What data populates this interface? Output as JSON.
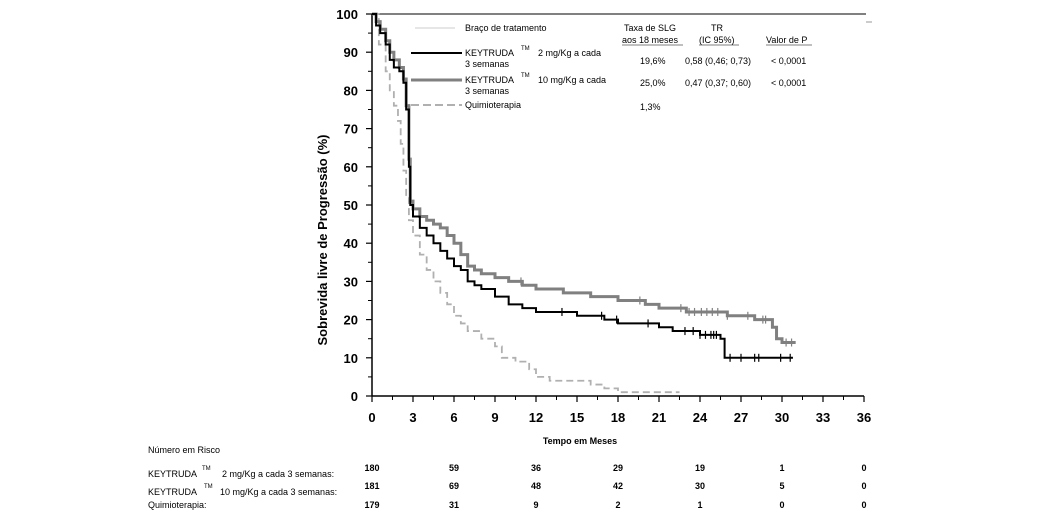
{
  "chart_data": {
    "type": "line",
    "xlabel": "Tempo em Meses",
    "ylabel": "Sobrevida livre de Progressão (%)",
    "xlim": [
      0,
      36
    ],
    "ylim": [
      0,
      100
    ],
    "x_ticks": [
      "0",
      "3",
      "6",
      "9",
      "12",
      "15",
      "18",
      "21",
      "24",
      "27",
      "30",
      "33",
      "36"
    ],
    "y_ticks": [
      "0",
      "10",
      "20",
      "30",
      "40",
      "50",
      "60",
      "70",
      "80",
      "90",
      "100"
    ],
    "legend": {
      "header_arm": "Braço de tratamento",
      "header_rate_1": "Taxa de SLG",
      "header_rate_2": "aos 18 meses",
      "header_hr_1": "TR",
      "header_hr_2": "(IC 95%)",
      "header_p": "Valor de P",
      "entries": [
        {
          "name": "KEYTRUDA",
          "tm": "TM",
          "dose": "2 mg/Kg a cada",
          "line2": "3 semanas",
          "rate": "19,6%",
          "hr": "0,58 (0,46; 0,73)",
          "p": "< 0,0001"
        },
        {
          "name": "KEYTRUDA",
          "tm": "TM",
          "dose": "10 mg/Kg a cada",
          "line2": "3 semanas",
          "rate": "25,0%",
          "hr": "0,47 (0,37; 0,60)",
          "p": "< 0,0001"
        },
        {
          "name": "Quimioterapia",
          "tm": "",
          "dose": "",
          "line2": "",
          "rate": "1,3%",
          "hr": "",
          "p": ""
        }
      ]
    },
    "series": [
      {
        "name": "KEYTRUDA 2 mg/Kg a cada 3 semanas",
        "color": "#000000",
        "points": [
          [
            0,
            100
          ],
          [
            0.3,
            97
          ],
          [
            0.6,
            95
          ],
          [
            1.0,
            92
          ],
          [
            1.3,
            88
          ],
          [
            1.6,
            86
          ],
          [
            2.0,
            85
          ],
          [
            2.3,
            82
          ],
          [
            2.5,
            75
          ],
          [
            2.7,
            60
          ],
          [
            2.8,
            50
          ],
          [
            3.0,
            47
          ],
          [
            3.5,
            44
          ],
          [
            4.0,
            42
          ],
          [
            4.5,
            40
          ],
          [
            5.0,
            38
          ],
          [
            5.5,
            36
          ],
          [
            6.0,
            34
          ],
          [
            6.5,
            33
          ],
          [
            7.0,
            30
          ],
          [
            7.5,
            29
          ],
          [
            8.0,
            28
          ],
          [
            9.0,
            26
          ],
          [
            10.0,
            24
          ],
          [
            11.0,
            23
          ],
          [
            12.0,
            22
          ],
          [
            14.0,
            22
          ],
          [
            15.0,
            21
          ],
          [
            16.0,
            21
          ],
          [
            17.0,
            20
          ],
          [
            18.0,
            19
          ],
          [
            20.0,
            19
          ],
          [
            21.0,
            18
          ],
          [
            22.0,
            17
          ],
          [
            23.0,
            17
          ],
          [
            24.0,
            16
          ],
          [
            25.0,
            16
          ],
          [
            25.5,
            15
          ],
          [
            25.8,
            10
          ],
          [
            27.0,
            10
          ],
          [
            30.0,
            10
          ],
          [
            30.8,
            10
          ]
        ],
        "censor_x": [
          13.9,
          16.8,
          17.9,
          20.2,
          22.9,
          23.5,
          24.0,
          24.4,
          24.8,
          25.0,
          25.2,
          26.2,
          27.0,
          28.0,
          28.3,
          29.9,
          30.6
        ]
      },
      {
        "name": "KEYTRUDA 10 mg/Kg a cada 3 semanas",
        "color": "#808080",
        "points": [
          [
            0,
            100
          ],
          [
            0.3,
            98
          ],
          [
            0.6,
            96
          ],
          [
            1.0,
            93
          ],
          [
            1.3,
            90
          ],
          [
            1.6,
            88
          ],
          [
            2.0,
            86
          ],
          [
            2.3,
            83
          ],
          [
            2.5,
            76
          ],
          [
            2.7,
            62
          ],
          [
            2.8,
            51
          ],
          [
            3.0,
            49
          ],
          [
            3.5,
            47
          ],
          [
            4.0,
            46
          ],
          [
            4.5,
            45
          ],
          [
            5.0,
            44
          ],
          [
            5.5,
            42
          ],
          [
            6.0,
            40
          ],
          [
            6.5,
            37
          ],
          [
            7.0,
            34
          ],
          [
            7.5,
            33
          ],
          [
            8.0,
            32
          ],
          [
            9.0,
            31
          ],
          [
            10.0,
            30
          ],
          [
            11.0,
            29
          ],
          [
            12.0,
            28
          ],
          [
            14.0,
            27
          ],
          [
            15.0,
            27
          ],
          [
            16.0,
            26
          ],
          [
            17.0,
            26
          ],
          [
            18.0,
            25
          ],
          [
            20.0,
            24
          ],
          [
            21.0,
            23
          ],
          [
            22.0,
            23
          ],
          [
            23.0,
            22
          ],
          [
            24.0,
            22
          ],
          [
            25.0,
            22
          ],
          [
            26.0,
            21
          ],
          [
            27.0,
            21
          ],
          [
            28.0,
            20
          ],
          [
            29.0,
            20
          ],
          [
            29.3,
            18
          ],
          [
            29.6,
            15
          ],
          [
            30.0,
            14
          ],
          [
            31.0,
            14
          ]
        ],
        "censor_x": [
          10.9,
          19.6,
          22.6,
          23.2,
          23.6,
          24.1,
          24.5,
          24.9,
          25.3,
          26.0,
          27.5,
          28.6,
          28.8,
          30.3,
          30.7
        ]
      },
      {
        "name": "Quimioterapia",
        "color": "#b0b0b0",
        "dashed": true,
        "points": [
          [
            0,
            100
          ],
          [
            0.5,
            92
          ],
          [
            1.0,
            85
          ],
          [
            1.3,
            80
          ],
          [
            1.6,
            76
          ],
          [
            1.9,
            72
          ],
          [
            2.1,
            66
          ],
          [
            2.3,
            59
          ],
          [
            2.5,
            52
          ],
          [
            2.7,
            46
          ],
          [
            3.0,
            42
          ],
          [
            3.5,
            37
          ],
          [
            4.0,
            33
          ],
          [
            4.5,
            30
          ],
          [
            5.0,
            27
          ],
          [
            5.5,
            24
          ],
          [
            6.0,
            21
          ],
          [
            6.5,
            19
          ],
          [
            7.0,
            17
          ],
          [
            8.0,
            15
          ],
          [
            9.0,
            13
          ],
          [
            9.5,
            10
          ],
          [
            10.5,
            9
          ],
          [
            11.5,
            7
          ],
          [
            12.0,
            5
          ],
          [
            13.0,
            4
          ],
          [
            14.0,
            4
          ],
          [
            16.0,
            3
          ],
          [
            17.0,
            2
          ],
          [
            18.0,
            1
          ],
          [
            20.0,
            1
          ],
          [
            22.5,
            1
          ]
        ],
        "censor_x": []
      }
    ],
    "risk_table": {
      "title": "Número em Risco",
      "x": [
        0,
        6,
        12,
        18,
        24,
        30,
        36
      ],
      "rows": [
        {
          "label_a": "KEYTRUDA",
          "tm": "TM",
          "label_b": "2 mg/Kg a cada 3 semanas:",
          "values": [
            "180",
            "59",
            "36",
            "29",
            "19",
            "1",
            "0"
          ]
        },
        {
          "label_a": "KEYTRUDA",
          "tm": "TM",
          "label_b": "10 mg/Kg a cada 3 semanas:",
          "values": [
            "181",
            "69",
            "48",
            "42",
            "30",
            "5",
            "0"
          ]
        },
        {
          "label_a": "Quimioterapia:",
          "tm": "",
          "label_b": "",
          "values": [
            "179",
            "31",
            "9",
            "2",
            "1",
            "0",
            "0"
          ]
        }
      ]
    }
  }
}
